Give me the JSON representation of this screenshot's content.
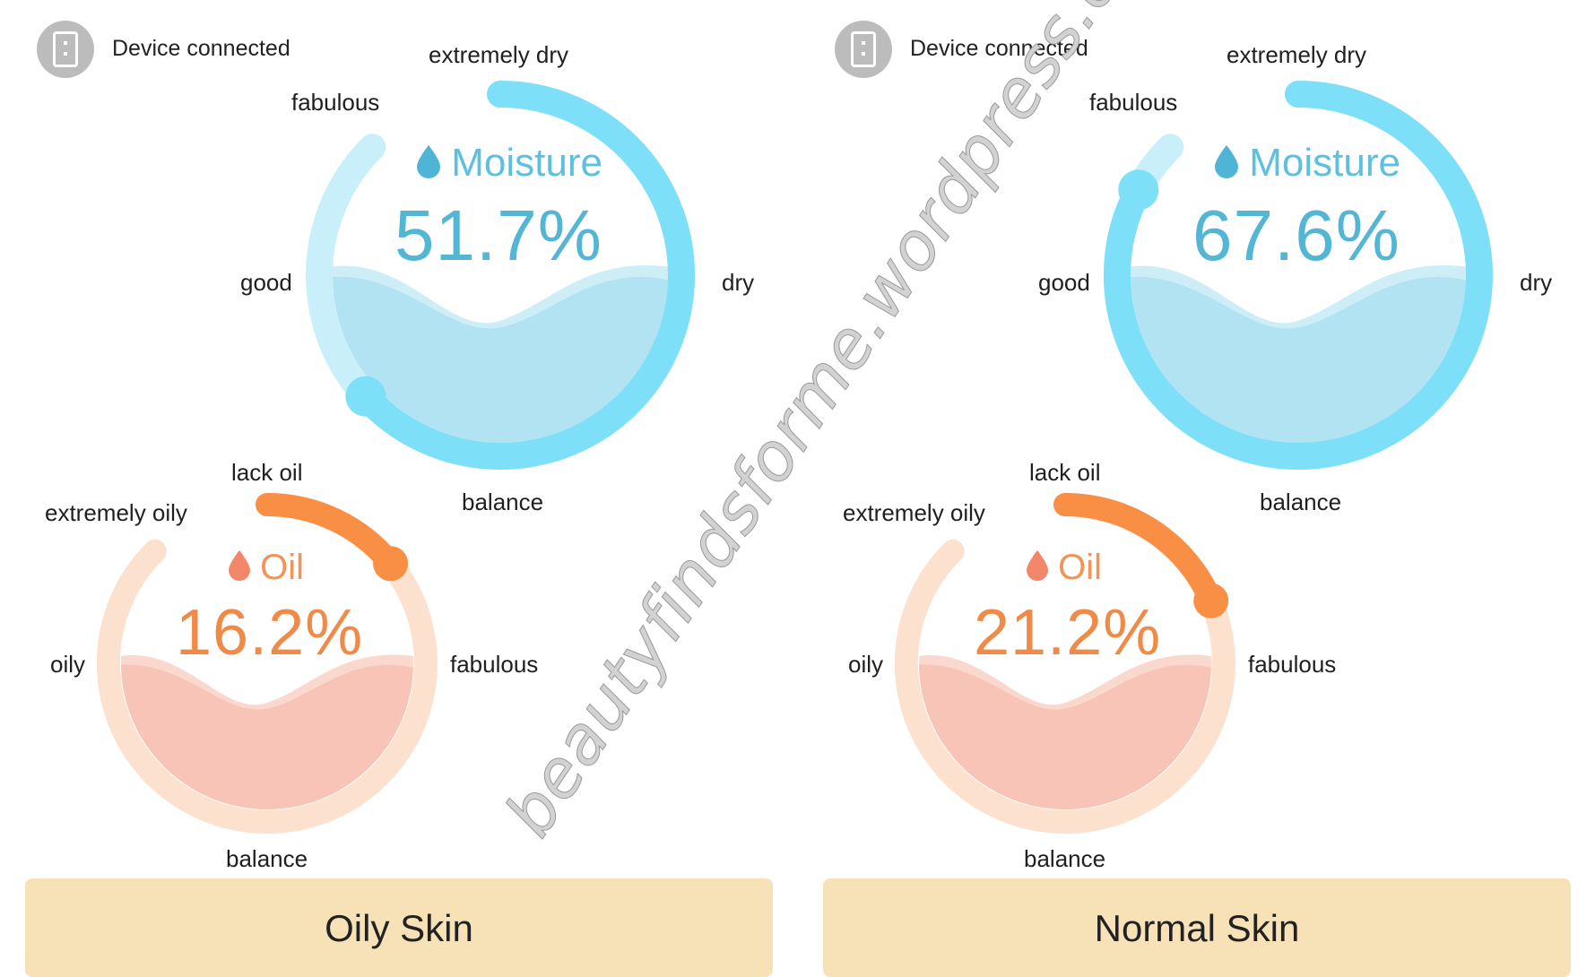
{
  "colors": {
    "moisture_track": "#c9f0fa",
    "moisture_arc": "#7ee0f8",
    "moisture_water": "#b2e3f2",
    "moisture_text": "#5cc0de",
    "oil_track": "#fde1cf",
    "oil_arc": "#f98f44",
    "oil_fill": "#f7c4b7",
    "oil_text": "#f08a48",
    "result_bg": "#f7e1b7"
  },
  "panels": [
    {
      "device_status": "Device connected",
      "moisture": {
        "icon": "water-drop-icon",
        "title": "Moisture",
        "value": "51.7%",
        "level_fraction": 0.517,
        "labels": {
          "top": "extremely dry",
          "top_left": "fabulous",
          "left": "good",
          "right": "dry",
          "bottom": "balance"
        }
      },
      "oil": {
        "icon": "oil-drop-icon",
        "title": "Oil",
        "value": "16.2%",
        "level_fraction": 0.162,
        "labels": {
          "top": "lack oil",
          "top_left": "extremely oily",
          "left": "oily",
          "right": "fabulous",
          "bottom": "balance"
        }
      },
      "result": "Oily Skin"
    },
    {
      "device_status": "Device connected",
      "moisture": {
        "icon": "water-drop-icon",
        "title": "Moisture",
        "value": "67.6%",
        "level_fraction": 0.676,
        "labels": {
          "top": "extremely dry",
          "top_left": "fabulous",
          "left": "good",
          "right": "dry",
          "bottom": "balance"
        }
      },
      "oil": {
        "icon": "oil-drop-icon",
        "title": "Oil",
        "value": "21.2%",
        "level_fraction": 0.212,
        "labels": {
          "top": "lack oil",
          "top_left": "extremely oily",
          "left": "oily",
          "right": "fabulous",
          "bottom": "balance"
        }
      },
      "result": "Normal Skin"
    }
  ],
  "watermark": "beautyfindsforme.wordpress.com"
}
